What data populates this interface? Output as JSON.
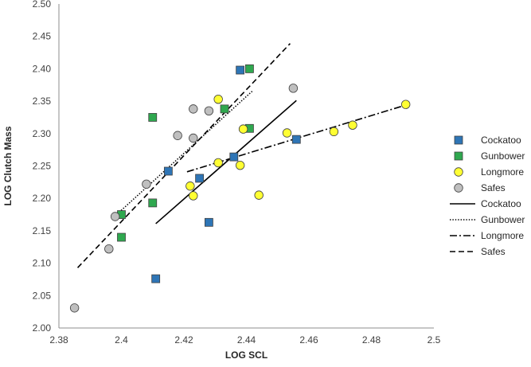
{
  "chart_data": {
    "type": "scatter",
    "xlabel": "LOG SCL",
    "ylabel": "LOG Clutch Mass",
    "xlim": [
      2.38,
      2.5
    ],
    "ylim": [
      2.0,
      2.5
    ],
    "x_ticks": [
      "2.38",
      "2.4",
      "2.42",
      "2.44",
      "2.46",
      "2.48",
      "2.5"
    ],
    "x_tick_values": [
      2.38,
      2.4,
      2.42,
      2.44,
      2.46,
      2.48,
      2.5
    ],
    "y_ticks": [
      "2.00",
      "2.05",
      "2.10",
      "2.15",
      "2.20",
      "2.25",
      "2.30",
      "2.35",
      "2.40",
      "2.45",
      "2.50"
    ],
    "y_tick_values": [
      2.0,
      2.05,
      2.1,
      2.15,
      2.2,
      2.25,
      2.3,
      2.35,
      2.4,
      2.45,
      2.5
    ],
    "grid": false,
    "legend_position": "right",
    "series": [
      {
        "name": "Cockatoo",
        "marker": "square",
        "color": "#2e75b6",
        "points": [
          [
            2.411,
            2.076
          ],
          [
            2.415,
            2.242
          ],
          [
            2.425,
            2.231
          ],
          [
            2.428,
            2.163
          ],
          [
            2.436,
            2.264
          ],
          [
            2.438,
            2.398
          ],
          [
            2.456,
            2.291
          ]
        ]
      },
      {
        "name": "Gunbower",
        "marker": "square",
        "color": "#2fa84f",
        "points": [
          [
            2.4,
            2.14
          ],
          [
            2.4,
            2.175
          ],
          [
            2.41,
            2.193
          ],
          [
            2.41,
            2.325
          ],
          [
            2.433,
            2.338
          ],
          [
            2.441,
            2.308
          ],
          [
            2.441,
            2.4
          ]
        ]
      },
      {
        "name": "Longmore",
        "marker": "circle",
        "color": "#ffff33",
        "points": [
          [
            2.422,
            2.219
          ],
          [
            2.423,
            2.204
          ],
          [
            2.431,
            2.255
          ],
          [
            2.431,
            2.353
          ],
          [
            2.438,
            2.251
          ],
          [
            2.439,
            2.307
          ],
          [
            2.444,
            2.205
          ],
          [
            2.453,
            2.301
          ],
          [
            2.468,
            2.303
          ],
          [
            2.474,
            2.313
          ],
          [
            2.491,
            2.345
          ]
        ]
      },
      {
        "name": "Safes",
        "marker": "circle",
        "color": "#bfbfbf",
        "points": [
          [
            2.385,
            2.031
          ],
          [
            2.396,
            2.122
          ],
          [
            2.398,
            2.172
          ],
          [
            2.408,
            2.222
          ],
          [
            2.418,
            2.297
          ],
          [
            2.423,
            2.338
          ],
          [
            2.423,
            2.293
          ],
          [
            2.428,
            2.335
          ],
          [
            2.455,
            2.37
          ]
        ]
      }
    ],
    "trendlines": [
      {
        "name": "Cockatoo",
        "style": "solid",
        "x": [
          2.411,
          2.456
        ],
        "y": [
          2.161,
          2.351
        ]
      },
      {
        "name": "Gunbower",
        "style": "dotted",
        "x": [
          2.398,
          2.442
        ],
        "y": [
          2.173,
          2.366
        ]
      },
      {
        "name": "Longmore",
        "style": "dashdot",
        "x": [
          2.421,
          2.491
        ],
        "y": [
          2.241,
          2.344
        ]
      },
      {
        "name": "Safes",
        "style": "dashed",
        "x": [
          2.386,
          2.454
        ],
        "y": [
          2.093,
          2.439
        ]
      }
    ]
  }
}
